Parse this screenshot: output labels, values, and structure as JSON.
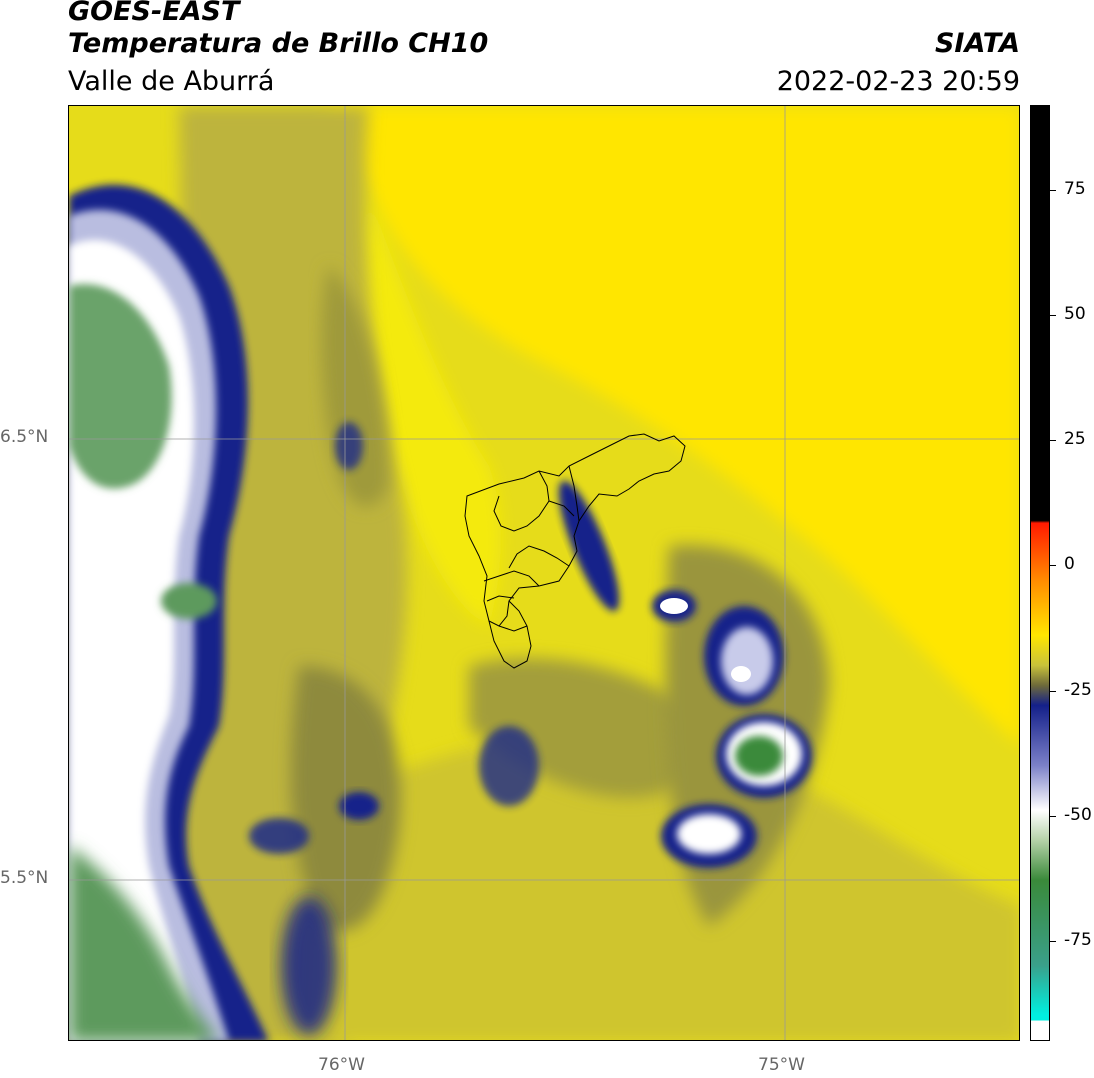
{
  "header": {
    "title_line1": "GOES-EAST",
    "title_line2": "Temperatura de Brillo CH10",
    "subtitle": "Valle de Aburrá",
    "organization": "SIATA",
    "datetime": "2022-02-23 20:59"
  },
  "map": {
    "lat_labels": [
      "6.5°N",
      "5.5°N"
    ],
    "lon_labels": [
      "76°W",
      "75°W"
    ],
    "colors": {
      "warm_yellow": "#ffe600",
      "olive": "#c9c23a",
      "dark_olive": "#8e8a3c",
      "cold_blue": "#14208a",
      "white": "#ffffff",
      "green": "#3a8a3a",
      "grid": "#999999"
    }
  },
  "colorbar": {
    "ticks": [
      "75",
      "50",
      "25",
      "0",
      "-25",
      "-50",
      "-75"
    ],
    "tick_values": [
      75,
      50,
      25,
      0,
      -25,
      -50,
      -75
    ],
    "range": [
      -95,
      92
    ]
  }
}
